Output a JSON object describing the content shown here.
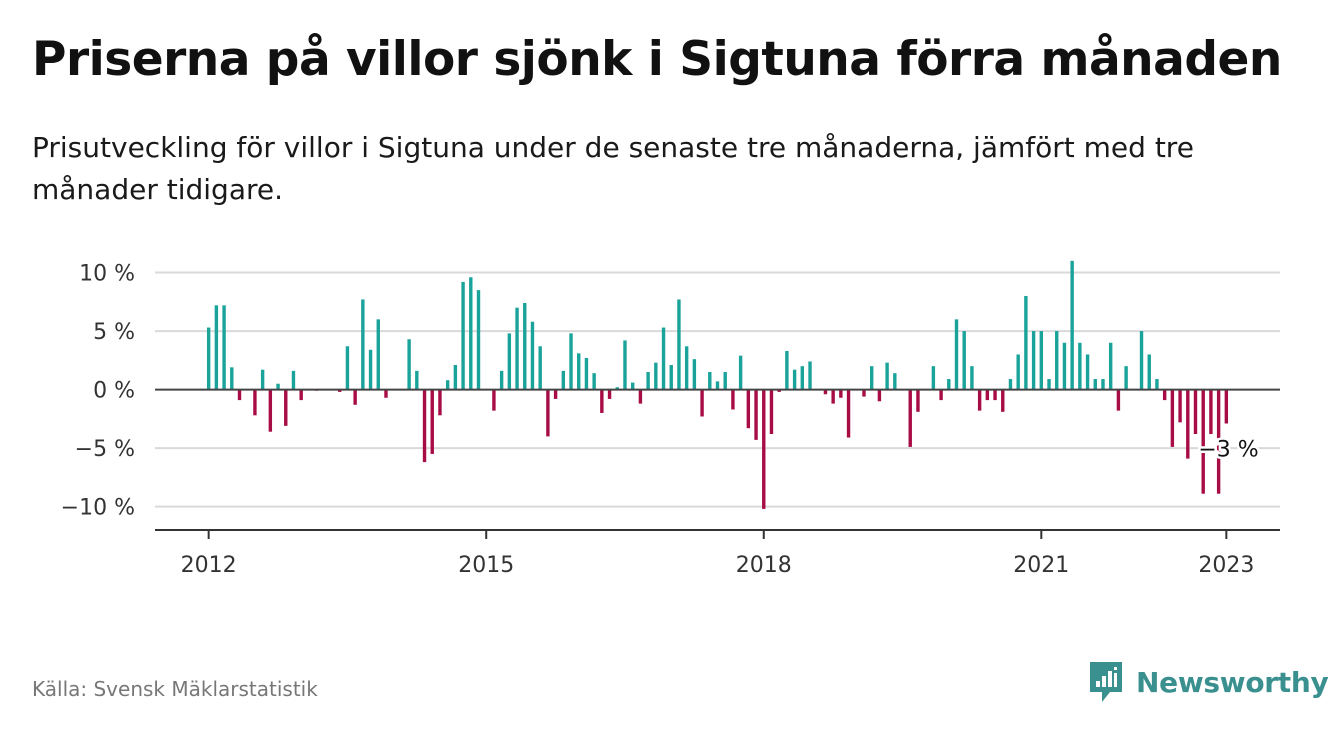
{
  "header": {
    "title": "Priserna på villor sjönk i Sigtuna förra månaden",
    "subtitle": "Prisutveckling för villor i Sigtuna under de senaste tre månaderna, jämfört med tre månader tidigare."
  },
  "footer": {
    "source": "Källa: Svensk Mäklarstatistik",
    "logo_text": "Newsworthy",
    "logo_icon": "newsworthy-logo-icon"
  },
  "colors": {
    "positive": "#1aa39a",
    "negative": "#a80c45",
    "brand": "#3a8f8f",
    "grid": "#d9d9d9",
    "zero_line": "#444444"
  },
  "chart_data": {
    "type": "bar",
    "title": "",
    "xlabel": "",
    "ylabel": "",
    "ylim": [
      -12,
      11.5
    ],
    "xlim": [
      2011.42,
      2023.58
    ],
    "grid": true,
    "legend": "none",
    "y_ticks": [
      {
        "value": 10,
        "label": "10 %"
      },
      {
        "value": 5,
        "label": "5 %"
      },
      {
        "value": 0,
        "label": "0 %"
      },
      {
        "value": -5,
        "label": "−5 %"
      },
      {
        "value": -10,
        "label": "−10 %"
      }
    ],
    "x_ticks": [
      {
        "value": 2012,
        "label": "2012"
      },
      {
        "value": 2015,
        "label": "2015"
      },
      {
        "value": 2018,
        "label": "2018"
      },
      {
        "value": 2021,
        "label": "2021"
      },
      {
        "value": 2023,
        "label": "2023"
      }
    ],
    "series_start": "2012-01",
    "values": [
      5.3,
      7.2,
      7.2,
      1.9,
      -0.9,
      0,
      -2.2,
      1.7,
      -3.6,
      0.5,
      -3.1,
      1.6,
      -0.9,
      0,
      -0.1,
      0,
      0,
      -0.2,
      3.7,
      -1.3,
      7.7,
      3.4,
      6.0,
      -0.7,
      0,
      0,
      4.3,
      1.6,
      -6.2,
      -5.5,
      -2.2,
      0.8,
      2.1,
      9.2,
      9.6,
      8.5,
      0,
      -1.8,
      1.6,
      4.8,
      7.0,
      7.4,
      5.8,
      3.7,
      -4.0,
      -0.8,
      1.6,
      4.8,
      3.1,
      2.7,
      1.4,
      -2.0,
      -0.8,
      0.2,
      4.2,
      0.6,
      -1.2,
      1.5,
      2.3,
      5.3,
      2.1,
      7.7,
      3.7,
      2.6,
      -2.3,
      1.5,
      0.7,
      1.5,
      -1.7,
      2.9,
      -3.3,
      -4.3,
      -10.2,
      -3.8,
      -0.2,
      3.3,
      1.7,
      2.0,
      2.4,
      0,
      -0.4,
      -1.2,
      -0.7,
      -4.1,
      0,
      -0.6,
      2.0,
      -1.0,
      2.3,
      1.4,
      0,
      -4.9,
      -1.9,
      0,
      2.0,
      -0.9,
      0.9,
      6.0,
      5.0,
      2.0,
      -1.8,
      -0.9,
      -0.9,
      -1.9,
      0.9,
      3.0,
      8.0,
      5.0,
      5.0,
      0.9,
      5.0,
      4.0,
      11.0,
      4.0,
      3.0,
      0.9,
      0.9,
      4.0,
      -1.8,
      2.0,
      0,
      5.0,
      3.0,
      0.9,
      -0.9,
      -4.9,
      -2.8,
      -5.9,
      -3.8,
      -8.9,
      -3.8,
      -8.9,
      -2.9
    ],
    "annotation": {
      "text": "−3 %",
      "value": -3
    }
  }
}
